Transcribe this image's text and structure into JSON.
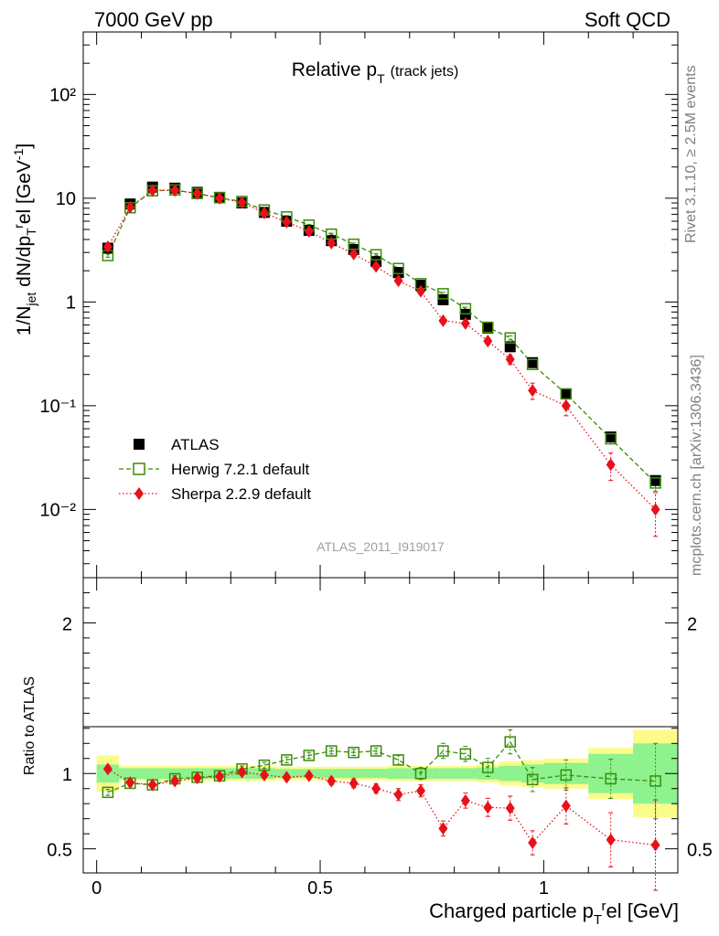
{
  "header": {
    "left": "7000 GeV pp",
    "right": "Soft QCD"
  },
  "side_labels": {
    "rivet": "Rivet 3.1.10, ≥ 2.5M events",
    "mcplots": "mcplots.cern.ch [arXiv:1306.3436]"
  },
  "colors": {
    "atlas": "#000000",
    "herwig": "#3a8c0a",
    "sherpa": "#e8111a",
    "band_inner": "#8ef28e",
    "band_outer": "#fbfb8a"
  },
  "chart_data": [
    {
      "type": "scatter",
      "panel": "main",
      "title_main": "Relative p",
      "title_sub": "T",
      "title_extra": "(track jets)",
      "analysis_label": "ATLAS_2011_I919017",
      "ylabel": "1/N_jet dN/dp_T^rel [GeV^-1]",
      "yscale": "log",
      "xlim": [
        -0.03,
        1.3
      ],
      "ylim": [
        0.0022,
        400
      ],
      "ytick_labels": [
        "10⁻²",
        "10⁻¹",
        "1",
        "10",
        "10²"
      ],
      "legend_position": "lower-left",
      "series": [
        {
          "name": "ATLAS",
          "style": "filled-square",
          "x": [
            0.025,
            0.075,
            0.125,
            0.175,
            0.225,
            0.275,
            0.325,
            0.375,
            0.425,
            0.475,
            0.525,
            0.575,
            0.625,
            0.675,
            0.725,
            0.775,
            0.825,
            0.875,
            0.925,
            0.975,
            1.05,
            1.15,
            1.25
          ],
          "y": [
            3.3,
            8.8,
            12.8,
            12.5,
            11.4,
            10.2,
            9.0,
            7.3,
            6.0,
            4.9,
            3.9,
            3.2,
            2.45,
            1.92,
            1.45,
            1.05,
            0.76,
            0.56,
            0.37,
            0.26,
            0.13,
            0.05,
            0.019
          ]
        },
        {
          "name": "Herwig 7.2.1 default",
          "style": "open-square-dashed",
          "x": [
            0.025,
            0.075,
            0.125,
            0.175,
            0.225,
            0.275,
            0.325,
            0.375,
            0.425,
            0.475,
            0.525,
            0.575,
            0.625,
            0.675,
            0.725,
            0.775,
            0.825,
            0.875,
            0.925,
            0.975,
            1.05,
            1.15,
            1.25
          ],
          "y": [
            2.8,
            8.1,
            11.8,
            12.0,
            11.1,
            10.1,
            9.3,
            7.7,
            6.6,
            5.5,
            4.5,
            3.6,
            2.85,
            2.1,
            1.5,
            1.2,
            0.86,
            0.57,
            0.45,
            0.25,
            0.13,
            0.048,
            0.018
          ],
          "err_low": [
            0.1,
            0.2,
            0.3,
            0.3,
            0.3,
            0.3,
            0.2,
            0.2,
            0.2,
            0.1,
            0.1,
            0.1,
            0.08,
            0.06,
            0.05,
            0.04,
            0.03,
            0.02,
            0.02,
            0.01,
            0.006,
            0.005,
            0.003
          ],
          "err_high": [
            0.1,
            0.2,
            0.3,
            0.3,
            0.3,
            0.3,
            0.2,
            0.2,
            0.2,
            0.1,
            0.1,
            0.1,
            0.08,
            0.06,
            0.05,
            0.04,
            0.03,
            0.02,
            0.02,
            0.01,
            0.006,
            0.005,
            0.003
          ]
        },
        {
          "name": "Sherpa 2.2.9 default",
          "style": "filled-diamond-dotted",
          "x": [
            0.025,
            0.075,
            0.125,
            0.175,
            0.225,
            0.275,
            0.325,
            0.375,
            0.425,
            0.475,
            0.525,
            0.575,
            0.625,
            0.675,
            0.725,
            0.775,
            0.825,
            0.875,
            0.925,
            0.975,
            1.05,
            1.15,
            1.25
          ],
          "y": [
            3.4,
            8.2,
            11.9,
            11.9,
            11.1,
            10.0,
            9.1,
            7.2,
            5.9,
            4.8,
            3.7,
            2.9,
            2.2,
            1.6,
            1.27,
            0.66,
            0.62,
            0.42,
            0.28,
            0.14,
            0.1,
            0.027,
            0.01
          ],
          "err_low": [
            0.1,
            0.2,
            0.3,
            0.3,
            0.3,
            0.3,
            0.2,
            0.2,
            0.2,
            0.1,
            0.1,
            0.1,
            0.08,
            0.06,
            0.05,
            0.04,
            0.04,
            0.03,
            0.03,
            0.025,
            0.02,
            0.008,
            0.0045
          ],
          "err_high": [
            0.1,
            0.2,
            0.3,
            0.3,
            0.3,
            0.3,
            0.2,
            0.2,
            0.2,
            0.1,
            0.1,
            0.1,
            0.08,
            0.06,
            0.05,
            0.04,
            0.04,
            0.03,
            0.03,
            0.025,
            0.02,
            0.008,
            0.0045
          ]
        }
      ]
    },
    {
      "type": "scatter",
      "panel": "ratio",
      "ylabel": "Ratio to ATLAS",
      "xlabel": "Charged particle p_T^rel [GeV]",
      "xlim": [
        -0.03,
        1.3
      ],
      "ylim": [
        0.34,
        2.3
      ],
      "xtick_labels": [
        "0",
        "0.5",
        "1"
      ],
      "ytick_labels": [
        "0.5",
        "1",
        "2"
      ],
      "bands": {
        "x_edges": [
          0.0,
          0.05,
          0.1,
          0.15,
          0.2,
          0.25,
          0.3,
          0.35,
          0.4,
          0.45,
          0.5,
          0.55,
          0.6,
          0.65,
          0.7,
          0.75,
          0.8,
          0.85,
          0.9,
          0.95,
          1.0,
          1.1,
          1.2,
          1.3
        ],
        "inner_half": [
          0.06,
          0.035,
          0.035,
          0.035,
          0.035,
          0.035,
          0.035,
          0.035,
          0.03,
          0.03,
          0.03,
          0.03,
          0.03,
          0.035,
          0.035,
          0.035,
          0.035,
          0.04,
          0.05,
          0.06,
          0.07,
          0.13,
          0.2
        ],
        "outer_half": [
          0.12,
          0.05,
          0.05,
          0.05,
          0.05,
          0.05,
          0.05,
          0.05,
          0.045,
          0.045,
          0.045,
          0.045,
          0.045,
          0.05,
          0.05,
          0.05,
          0.05,
          0.06,
          0.08,
          0.09,
          0.1,
          0.17,
          0.29
        ]
      },
      "series": [
        {
          "name": "Herwig 7.2.1 default",
          "x": [
            0.025,
            0.075,
            0.125,
            0.175,
            0.225,
            0.275,
            0.325,
            0.375,
            0.425,
            0.475,
            0.525,
            0.575,
            0.625,
            0.675,
            0.725,
            0.775,
            0.825,
            0.875,
            0.925,
            0.975,
            1.05,
            1.15,
            1.25
          ],
          "y": [
            0.875,
            0.935,
            0.925,
            0.965,
            0.975,
            0.985,
            1.03,
            1.055,
            1.09,
            1.12,
            1.15,
            1.14,
            1.15,
            1.09,
            1.0,
            1.15,
            1.13,
            1.04,
            1.21,
            0.96,
            0.99,
            0.965,
            0.95
          ],
          "err_low": [
            0.02,
            0.02,
            0.02,
            0.02,
            0.02,
            0.02,
            0.02,
            0.02,
            0.02,
            0.02,
            0.02,
            0.02,
            0.02,
            0.03,
            0.04,
            0.05,
            0.05,
            0.06,
            0.08,
            0.08,
            0.1,
            0.13,
            0.25
          ],
          "err_high": [
            0.02,
            0.02,
            0.02,
            0.02,
            0.02,
            0.02,
            0.02,
            0.02,
            0.02,
            0.02,
            0.02,
            0.02,
            0.02,
            0.03,
            0.04,
            0.05,
            0.05,
            0.06,
            0.08,
            0.08,
            0.1,
            0.13,
            0.25
          ]
        },
        {
          "name": "Sherpa 2.2.9 default",
          "x": [
            0.025,
            0.075,
            0.125,
            0.175,
            0.225,
            0.275,
            0.325,
            0.375,
            0.425,
            0.475,
            0.525,
            0.575,
            0.625,
            0.675,
            0.725,
            0.775,
            0.825,
            0.875,
            0.925,
            0.975,
            1.05,
            1.15,
            1.25
          ],
          "y": [
            1.03,
            0.94,
            0.925,
            0.95,
            0.97,
            0.98,
            1.01,
            0.99,
            0.975,
            0.985,
            0.95,
            0.935,
            0.9,
            0.86,
            0.885,
            0.635,
            0.82,
            0.775,
            0.77,
            0.54,
            0.785,
            0.56,
            0.525
          ],
          "err_low": [
            0.02,
            0.02,
            0.02,
            0.02,
            0.02,
            0.02,
            0.02,
            0.02,
            0.02,
            0.02,
            0.025,
            0.03,
            0.03,
            0.04,
            0.04,
            0.05,
            0.05,
            0.06,
            0.08,
            0.08,
            0.12,
            0.18,
            0.3
          ],
          "err_high": [
            0.02,
            0.02,
            0.02,
            0.02,
            0.02,
            0.02,
            0.02,
            0.02,
            0.02,
            0.02,
            0.025,
            0.03,
            0.03,
            0.04,
            0.04,
            0.05,
            0.05,
            0.06,
            0.08,
            0.08,
            0.12,
            0.18,
            0.3
          ]
        }
      ]
    }
  ]
}
